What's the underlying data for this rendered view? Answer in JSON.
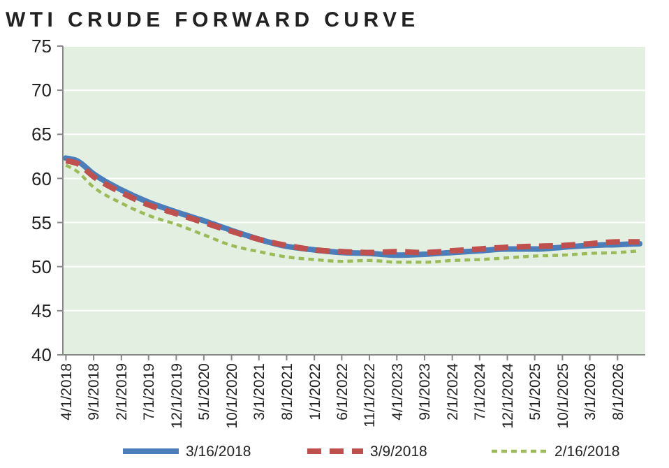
{
  "chart_data": {
    "type": "line",
    "title": "WTI CRUDE FORWARD CURVE",
    "x": [
      "2018-04",
      "2018-06",
      "2018-09",
      "2019-02",
      "2019-07",
      "2019-12",
      "2020-05",
      "2020-10",
      "2021-03",
      "2021-08",
      "2022-01",
      "2022-06",
      "2022-11",
      "2023-04",
      "2023-09",
      "2024-02",
      "2024-07",
      "2024-12",
      "2025-05",
      "2025-10",
      "2026-03",
      "2026-08",
      "2026-12"
    ],
    "series": [
      {
        "name": "3/16/2018",
        "color": "#4a7ebb",
        "line_style": "solid",
        "values": [
          62.3,
          62.0,
          60.5,
          58.7,
          57.3,
          56.2,
          55.2,
          54.1,
          53.1,
          52.3,
          51.9,
          51.6,
          51.5,
          51.3,
          51.4,
          51.6,
          51.8,
          52.0,
          52.0,
          52.2,
          52.4,
          52.5,
          52.6
        ]
      },
      {
        "name": "3/9/2018",
        "color": "#c0504d",
        "line_style": "dashed",
        "values": [
          62.0,
          61.7,
          60.2,
          58.4,
          57.0,
          56.0,
          55.0,
          54.0,
          53.1,
          52.4,
          51.9,
          51.7,
          51.6,
          51.7,
          51.6,
          51.8,
          52.0,
          52.2,
          52.3,
          52.4,
          52.6,
          52.8,
          52.8
        ]
      },
      {
        "name": "2/16/2018",
        "color": "#9bbb59",
        "line_style": "dotted",
        "values": [
          61.5,
          60.8,
          59.0,
          57.2,
          55.8,
          54.8,
          53.6,
          52.4,
          51.7,
          51.1,
          50.8,
          50.6,
          50.7,
          50.5,
          50.5,
          50.7,
          50.8,
          51.0,
          51.2,
          51.3,
          51.5,
          51.6,
          51.8
        ]
      }
    ],
    "xlim": [
      "2018-03-15",
      "2027-01-01"
    ],
    "xticks": [
      {
        "value": "2018-04",
        "label": "4/1/2018"
      },
      {
        "value": "2018-09",
        "label": "9/1/2018"
      },
      {
        "value": "2019-02",
        "label": "2/1/2019"
      },
      {
        "value": "2019-07",
        "label": "7/1/2019"
      },
      {
        "value": "2019-12",
        "label": "12/1/2019"
      },
      {
        "value": "2020-05",
        "label": "5/1/2020"
      },
      {
        "value": "2020-10",
        "label": "10/1/2020"
      },
      {
        "value": "2021-03",
        "label": "3/1/2021"
      },
      {
        "value": "2021-08",
        "label": "8/1/2021"
      },
      {
        "value": "2022-01",
        "label": "1/1/2022"
      },
      {
        "value": "2022-06",
        "label": "6/1/2022"
      },
      {
        "value": "2022-11",
        "label": "11/1/2022"
      },
      {
        "value": "2023-04",
        "label": "4/1/2023"
      },
      {
        "value": "2023-09",
        "label": "9/1/2023"
      },
      {
        "value": "2024-02",
        "label": "2/1/2024"
      },
      {
        "value": "2024-07",
        "label": "7/1/2024"
      },
      {
        "value": "2024-12",
        "label": "12/1/2024"
      },
      {
        "value": "2025-05",
        "label": "5/1/2025"
      },
      {
        "value": "2025-10",
        "label": "10/1/2025"
      },
      {
        "value": "2026-03",
        "label": "3/1/2026"
      },
      {
        "value": "2026-08",
        "label": "8/1/2026"
      }
    ],
    "ylim": [
      40,
      75
    ],
    "yticks": [
      40,
      45,
      50,
      55,
      60,
      65,
      70,
      75
    ],
    "grid": "y",
    "legend": "bottom",
    "marker": "none"
  }
}
